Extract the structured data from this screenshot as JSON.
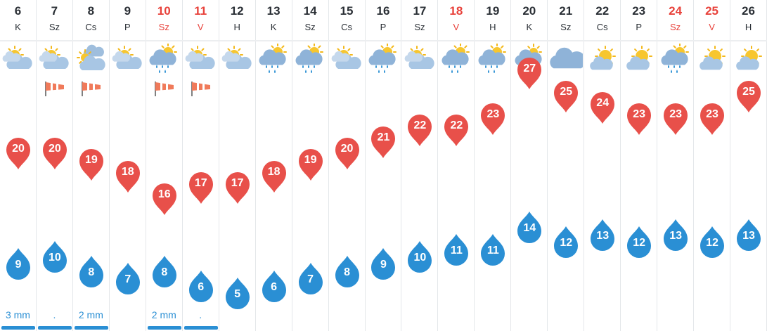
{
  "colors": {
    "weekend_text": "#e8413a",
    "high_temp_pin": "#e8504a",
    "low_temp_pin": "#2a8fd4",
    "precip_text": "#2a8fd4"
  },
  "days": [
    {
      "date": "6",
      "weekday": "K",
      "weekend": false,
      "icon": "partly-cloudy-icon",
      "wind": false,
      "high": "20",
      "low": "9",
      "precip": "3 mm"
    },
    {
      "date": "7",
      "weekday": "Sz",
      "weekend": false,
      "icon": "partly-cloudy-icon",
      "wind": true,
      "high": "20",
      "low": "10",
      "precip": "."
    },
    {
      "date": "8",
      "weekday": "Cs",
      "weekend": false,
      "icon": "mostly-cloudy-icon",
      "wind": true,
      "high": "19",
      "low": "8",
      "precip": "2 mm"
    },
    {
      "date": "9",
      "weekday": "P",
      "weekend": false,
      "icon": "partly-cloudy-icon",
      "wind": false,
      "high": "18",
      "low": "7",
      "precip": ""
    },
    {
      "date": "10",
      "weekday": "Sz",
      "weekend": true,
      "icon": "sun-rain-icon",
      "wind": true,
      "high": "16",
      "low": "8",
      "precip": "2 mm"
    },
    {
      "date": "11",
      "weekday": "V",
      "weekend": true,
      "icon": "partly-cloudy-icon",
      "wind": true,
      "high": "17",
      "low": "6",
      "precip": "."
    },
    {
      "date": "12",
      "weekday": "H",
      "weekend": false,
      "icon": "partly-cloudy-icon",
      "wind": false,
      "high": "17",
      "low": "5",
      "precip": ""
    },
    {
      "date": "13",
      "weekday": "K",
      "weekend": false,
      "icon": "sun-rain-icon",
      "wind": false,
      "high": "18",
      "low": "6",
      "precip": ""
    },
    {
      "date": "14",
      "weekday": "Sz",
      "weekend": false,
      "icon": "sun-rain-icon",
      "wind": false,
      "high": "19",
      "low": "7",
      "precip": ""
    },
    {
      "date": "15",
      "weekday": "Cs",
      "weekend": false,
      "icon": "partly-cloudy-icon",
      "wind": false,
      "high": "20",
      "low": "8",
      "precip": ""
    },
    {
      "date": "16",
      "weekday": "P",
      "weekend": false,
      "icon": "sun-rain-icon",
      "wind": false,
      "high": "21",
      "low": "9",
      "precip": ""
    },
    {
      "date": "17",
      "weekday": "Sz",
      "weekend": false,
      "icon": "partly-cloudy-icon",
      "wind": false,
      "high": "22",
      "low": "10",
      "precip": ""
    },
    {
      "date": "18",
      "weekday": "V",
      "weekend": true,
      "icon": "sun-rain-icon",
      "wind": false,
      "high": "22",
      "low": "11",
      "precip": ""
    },
    {
      "date": "19",
      "weekday": "H",
      "weekend": false,
      "icon": "sun-rain-icon",
      "wind": false,
      "high": "23",
      "low": "11",
      "precip": ""
    },
    {
      "date": "20",
      "weekday": "K",
      "weekend": false,
      "icon": "thunderstorm-icon",
      "wind": false,
      "high": "27",
      "low": "14",
      "precip": ""
    },
    {
      "date": "21",
      "weekday": "Sz",
      "weekend": false,
      "icon": "cloudy-icon",
      "wind": false,
      "high": "25",
      "low": "12",
      "precip": ""
    },
    {
      "date": "22",
      "weekday": "Cs",
      "weekend": false,
      "icon": "sunny-cloud-icon",
      "wind": false,
      "high": "24",
      "low": "13",
      "precip": ""
    },
    {
      "date": "23",
      "weekday": "P",
      "weekend": false,
      "icon": "sunny-cloud-icon",
      "wind": false,
      "high": "23",
      "low": "12",
      "precip": ""
    },
    {
      "date": "24",
      "weekday": "Sz",
      "weekend": true,
      "icon": "sun-rain-icon",
      "wind": false,
      "high": "23",
      "low": "13",
      "precip": ""
    },
    {
      "date": "25",
      "weekday": "V",
      "weekend": true,
      "icon": "sunny-cloud-icon",
      "wind": false,
      "high": "23",
      "low": "12",
      "precip": ""
    },
    {
      "date": "26",
      "weekday": "H",
      "weekend": false,
      "icon": "sunny-cloud-icon",
      "wind": false,
      "high": "25",
      "low": "13",
      "precip": ""
    }
  ]
}
